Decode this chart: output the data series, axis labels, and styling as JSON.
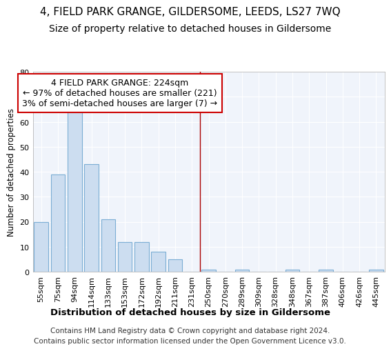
{
  "title": "4, FIELD PARK GRANGE, GILDERSOME, LEEDS, LS27 7WQ",
  "subtitle": "Size of property relative to detached houses in Gildersome",
  "xlabel": "Distribution of detached houses by size in Gildersome",
  "ylabel": "Number of detached properties",
  "bar_color": "#ccddf0",
  "bar_edge_color": "#7aadd4",
  "categories": [
    "55sqm",
    "75sqm",
    "94sqm",
    "114sqm",
    "133sqm",
    "153sqm",
    "172sqm",
    "192sqm",
    "211sqm",
    "231sqm",
    "250sqm",
    "270sqm",
    "289sqm",
    "309sqm",
    "328sqm",
    "348sqm",
    "367sqm",
    "387sqm",
    "406sqm",
    "426sqm",
    "445sqm"
  ],
  "values": [
    20,
    39,
    64,
    43,
    21,
    12,
    12,
    8,
    5,
    0,
    1,
    0,
    1,
    0,
    0,
    1,
    0,
    1,
    0,
    0,
    1
  ],
  "vline_x": 9.5,
  "vline_color": "#aa0000",
  "annotation_text": "4 FIELD PARK GRANGE: 224sqm\n← 97% of detached houses are smaller (221)\n3% of semi-detached houses are larger (7) →",
  "annotation_box_facecolor": "#ffffff",
  "annotation_box_edgecolor": "#cc0000",
  "ylim": [
    0,
    80
  ],
  "yticks": [
    0,
    10,
    20,
    30,
    40,
    50,
    60,
    70,
    80
  ],
  "background_color": "#ffffff",
  "plot_bg_color": "#f0f4fb",
  "grid_color": "#ffffff",
  "footer_text": "Contains HM Land Registry data © Crown copyright and database right 2024.\nContains public sector information licensed under the Open Government Licence v3.0.",
  "title_fontsize": 11,
  "subtitle_fontsize": 10,
  "xlabel_fontsize": 9.5,
  "ylabel_fontsize": 8.5,
  "tick_fontsize": 8,
  "annotation_fontsize": 9,
  "footer_fontsize": 7.5
}
